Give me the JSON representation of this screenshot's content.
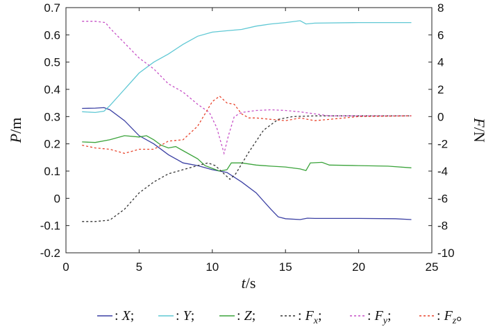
{
  "chart_data": {
    "type": "line",
    "xlabel_main": "t",
    "xlabel_unit": "/s",
    "ylabel_left_main": "P",
    "ylabel_left_unit": "/m",
    "ylabel_right_main": "F",
    "ylabel_right_unit": "/N",
    "xlim": [
      0,
      25
    ],
    "ylim_left": [
      -0.2,
      0.7
    ],
    "ylim_right": [
      -10,
      8
    ],
    "xticks": [
      "0",
      "5",
      "10",
      "15",
      "20",
      "25"
    ],
    "yticks_left": [
      "0.7",
      "0.6",
      "0.5",
      "0.4",
      "0.3",
      "0.2",
      "0.1",
      "0",
      "-0.1",
      "-0.2"
    ],
    "yticks_right": [
      "8",
      "6",
      "4",
      "2",
      "0",
      "-2",
      "-4",
      "-6",
      "-8",
      "-10"
    ],
    "grid": false,
    "legend_position": "bottom",
    "legend_final": "。",
    "series": [
      {
        "name": "X",
        "axis": "left",
        "color": "#3a3fa3",
        "dash": "solid",
        "legend_sub": "",
        "points": [
          [
            1.1,
            0.33
          ],
          [
            2,
            0.331
          ],
          [
            2.6,
            0.333
          ],
          [
            3,
            0.325
          ],
          [
            4,
            0.285
          ],
          [
            5,
            0.23
          ],
          [
            6,
            0.2
          ],
          [
            7,
            0.16
          ],
          [
            8,
            0.13
          ],
          [
            9,
            0.12
          ],
          [
            10,
            0.105
          ],
          [
            11,
            0.095
          ],
          [
            12,
            0.06
          ],
          [
            13,
            0.02
          ],
          [
            14,
            -0.04
          ],
          [
            14.5,
            -0.068
          ],
          [
            15,
            -0.075
          ],
          [
            16,
            -0.078
          ],
          [
            16.5,
            -0.073
          ],
          [
            17,
            -0.074
          ],
          [
            20,
            -0.074
          ],
          [
            22.5,
            -0.075
          ],
          [
            23.6,
            -0.078
          ]
        ]
      },
      {
        "name": "Y",
        "axis": "left",
        "color": "#5fc8d4",
        "dash": "solid",
        "legend_sub": "",
        "points": [
          [
            1.1,
            0.318
          ],
          [
            2,
            0.315
          ],
          [
            2.6,
            0.32
          ],
          [
            3,
            0.34
          ],
          [
            4,
            0.4
          ],
          [
            5,
            0.46
          ],
          [
            6,
            0.5
          ],
          [
            7,
            0.53
          ],
          [
            8,
            0.565
          ],
          [
            9,
            0.595
          ],
          [
            10,
            0.61
          ],
          [
            11,
            0.615
          ],
          [
            12,
            0.62
          ],
          [
            13,
            0.632
          ],
          [
            14,
            0.64
          ],
          [
            15,
            0.645
          ],
          [
            16,
            0.652
          ],
          [
            16.4,
            0.64
          ],
          [
            17,
            0.643
          ],
          [
            20,
            0.645
          ],
          [
            23.6,
            0.645
          ]
        ]
      },
      {
        "name": "Z",
        "axis": "left",
        "color": "#3aa33a",
        "dash": "solid",
        "legend_sub": "",
        "points": [
          [
            1.1,
            0.207
          ],
          [
            2,
            0.205
          ],
          [
            3,
            0.215
          ],
          [
            4,
            0.23
          ],
          [
            5,
            0.225
          ],
          [
            5.5,
            0.23
          ],
          [
            6,
            0.215
          ],
          [
            6.5,
            0.195
          ],
          [
            7,
            0.185
          ],
          [
            7.5,
            0.19
          ],
          [
            8,
            0.175
          ],
          [
            9,
            0.145
          ],
          [
            9.5,
            0.12
          ],
          [
            10,
            0.11
          ],
          [
            10.5,
            0.1
          ],
          [
            11,
            0.105
          ],
          [
            11.3,
            0.13
          ],
          [
            12,
            0.13
          ],
          [
            13,
            0.122
          ],
          [
            14,
            0.118
          ],
          [
            15,
            0.115
          ],
          [
            16,
            0.108
          ],
          [
            16.4,
            0.102
          ],
          [
            16.7,
            0.13
          ],
          [
            17.5,
            0.132
          ],
          [
            18,
            0.122
          ],
          [
            20,
            0.12
          ],
          [
            22,
            0.118
          ],
          [
            23.6,
            0.112
          ]
        ]
      },
      {
        "name": "F",
        "axis": "right",
        "color": "#333333",
        "dash": "3,3",
        "legend_sub": "x",
        "points": [
          [
            1.1,
            -7.7
          ],
          [
            2,
            -7.7
          ],
          [
            3,
            -7.6
          ],
          [
            4,
            -6.8
          ],
          [
            5,
            -5.6
          ],
          [
            6,
            -4.8
          ],
          [
            7,
            -4.2
          ],
          [
            8,
            -3.9
          ],
          [
            9,
            -3.6
          ],
          [
            9.7,
            -3.4
          ],
          [
            10.2,
            -3.6
          ],
          [
            10.8,
            -4.2
          ],
          [
            11.2,
            -4.6
          ],
          [
            11.6,
            -4.2
          ],
          [
            12.5,
            -2.6
          ],
          [
            13.5,
            -1.0
          ],
          [
            14.5,
            -0.2
          ],
          [
            15.5,
            0.0
          ],
          [
            17,
            0.05
          ],
          [
            20,
            0.05
          ],
          [
            23.6,
            0.05
          ]
        ]
      },
      {
        "name": "F",
        "axis": "right",
        "color": "#c64fc6",
        "dash": "3,3",
        "legend_sub": "y",
        "points": [
          [
            1.1,
            7.0
          ],
          [
            2,
            7.0
          ],
          [
            2.7,
            6.9
          ],
          [
            3,
            6.5
          ],
          [
            4,
            5.4
          ],
          [
            5,
            4.3
          ],
          [
            6,
            3.5
          ],
          [
            7,
            2.4
          ],
          [
            8,
            1.8
          ],
          [
            9,
            0.9
          ],
          [
            9.8,
            0.3
          ],
          [
            10.3,
            -0.8
          ],
          [
            10.8,
            -2.7
          ],
          [
            11.1,
            -1.4
          ],
          [
            11.5,
            0.0
          ],
          [
            12,
            0.3
          ],
          [
            13,
            0.45
          ],
          [
            14,
            0.5
          ],
          [
            15,
            0.45
          ],
          [
            16,
            0.35
          ],
          [
            17,
            0.2
          ],
          [
            18,
            0.05
          ],
          [
            20,
            0.05
          ],
          [
            23.6,
            0.05
          ]
        ]
      },
      {
        "name": "F",
        "axis": "right",
        "color": "#e8442c",
        "dash": "3,3",
        "legend_sub": "z",
        "points": [
          [
            1.1,
            -2.1
          ],
          [
            2,
            -2.3
          ],
          [
            3,
            -2.4
          ],
          [
            4,
            -2.7
          ],
          [
            5,
            -2.4
          ],
          [
            6,
            -2.4
          ],
          [
            7,
            -1.8
          ],
          [
            8,
            -1.7
          ],
          [
            9,
            -0.7
          ],
          [
            10,
            1.1
          ],
          [
            10.5,
            1.5
          ],
          [
            11,
            1.0
          ],
          [
            11.5,
            0.9
          ],
          [
            12,
            0.2
          ],
          [
            12.5,
            -0.1
          ],
          [
            13,
            -0.1
          ],
          [
            14,
            -0.2
          ],
          [
            15,
            -0.3
          ],
          [
            16,
            -0.1
          ],
          [
            17,
            -0.3
          ],
          [
            18,
            -0.2
          ],
          [
            20,
            0.0
          ],
          [
            23.6,
            0.05
          ]
        ]
      }
    ]
  }
}
